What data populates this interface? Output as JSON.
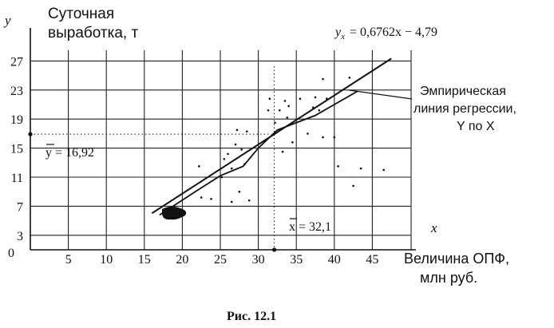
{
  "chart_data": {
    "type": "scatter",
    "title": "Суточная выработка, т",
    "y_axis_letter": "y",
    "x_axis_letter": "x",
    "xlabel_line1": "Величина ОПФ,",
    "xlabel_line2": "млн руб.",
    "origin_label": "0",
    "xlim": [
      0,
      50
    ],
    "ylim": [
      1,
      29
    ],
    "x_ticks": [
      5,
      10,
      15,
      20,
      25,
      30,
      35,
      40,
      45
    ],
    "y_ticks": [
      3,
      7,
      11,
      15,
      19,
      23,
      27
    ],
    "grid": true,
    "mean_y": {
      "value": 16.92,
      "label": "y = 16,92"
    },
    "mean_x": {
      "value": 32.1,
      "label": "x = 32,1"
    },
    "theoretical_line": {
      "label": "yx = 0,6762x − 4,79",
      "label_y": "y",
      "label_sub": "x",
      "label_rest": "= 0,6762x − 4,79",
      "slope": 0.6762,
      "intercept": -4.79,
      "x_range": [
        16,
        47.5
      ]
    },
    "empirical_line": {
      "label_line1": "Эмпирическая",
      "label_line2": "линия регрессии,",
      "label_line3": "Y по X",
      "points": [
        [
          17,
          5.8
        ],
        [
          22,
          9.2
        ],
        [
          25,
          11.2
        ],
        [
          28,
          12.5
        ],
        [
          30,
          15
        ],
        [
          32.5,
          17.5
        ],
        [
          35,
          18.5
        ],
        [
          37.5,
          19.5
        ],
        [
          40,
          21
        ],
        [
          43,
          22.8
        ]
      ]
    },
    "points": [
      [
        22.2,
        12.5
      ],
      [
        22.5,
        8.2
      ],
      [
        23.8,
        8.0
      ],
      [
        25.2,
        11.0
      ],
      [
        25.5,
        13.5
      ],
      [
        26.0,
        14.2
      ],
      [
        26.5,
        12.2
      ],
      [
        27.0,
        15.5
      ],
      [
        27.2,
        17.5
      ],
      [
        27.5,
        9.0
      ],
      [
        28.2,
        12.8
      ],
      [
        28.5,
        17.3
      ],
      [
        28.8,
        7.8
      ],
      [
        26.5,
        7.6
      ],
      [
        27.8,
        14.8
      ],
      [
        31.3,
        20.2
      ],
      [
        31.5,
        21.8
      ],
      [
        32.2,
        18.5
      ],
      [
        32.8,
        20.2
      ],
      [
        33.2,
        14.5
      ],
      [
        33.5,
        21.5
      ],
      [
        33.8,
        19.2
      ],
      [
        34.0,
        20.8
      ],
      [
        34.5,
        15.8
      ],
      [
        35.5,
        21.8
      ],
      [
        36.5,
        17.0
      ],
      [
        37.2,
        20.6
      ],
      [
        37.5,
        22.0
      ],
      [
        38.0,
        20.2
      ],
      [
        38.5,
        16.5
      ],
      [
        39.0,
        21.8
      ],
      [
        38.5,
        24.5
      ],
      [
        40.0,
        16.5
      ],
      [
        40.5,
        12.5
      ],
      [
        42.0,
        24.7
      ],
      [
        42.5,
        9.8
      ],
      [
        43.5,
        12.2
      ],
      [
        46.5,
        12.0
      ]
    ]
  },
  "caption": "Рис. 12.1"
}
